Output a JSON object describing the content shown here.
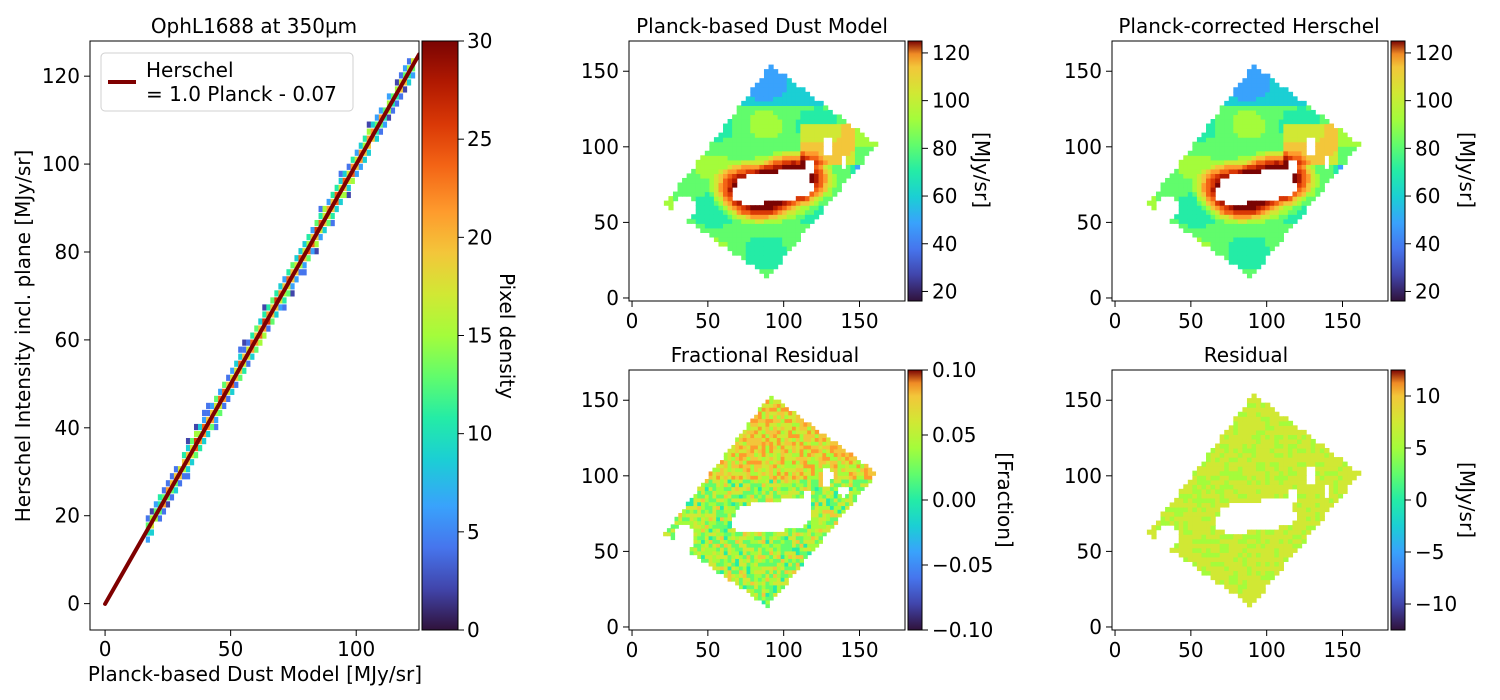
{
  "chart_data": [
    {
      "id": "scatter",
      "type": "heatmap",
      "title": "OphL1688 at 350μm",
      "xlabel": "Planck-based Dust Model [MJy/sr]",
      "ylabel": "Herschel Intensity incl. plane [MJy/sr]",
      "xlim": [
        -6,
        125
      ],
      "ylim": [
        -6,
        128
      ],
      "xticks": [
        0,
        50,
        100
      ],
      "yticks": [
        0,
        20,
        40,
        60,
        80,
        100,
        120
      ],
      "legend": {
        "location": "top-left",
        "line1": "Herschel",
        "line2": "= 1.0 Planck - 0.07"
      },
      "fit": {
        "slope": 1.0,
        "intercept": -0.07,
        "x_range": [
          0,
          125
        ],
        "color": "#7f0000"
      },
      "density_band": {
        "x_range": [
          17,
          124
        ],
        "description": "2D histogram of pixels along the fit line"
      },
      "colorbar": {
        "label": "Pixel density",
        "range": [
          0,
          30
        ],
        "ticks": [
          0,
          5,
          10,
          15,
          20,
          25,
          30
        ],
        "cmap": "turbo"
      }
    },
    {
      "id": "dust_model",
      "type": "heatmap",
      "title": "Planck-based Dust Model",
      "xlim": [
        -2,
        180
      ],
      "ylim": [
        -2,
        170
      ],
      "xticks": [
        0,
        50,
        100,
        150
      ],
      "yticks": [
        0,
        50,
        100,
        150
      ],
      "colorbar": {
        "label": "[MJy/sr]",
        "range": [
          16,
          125
        ],
        "ticks": [
          20,
          40,
          60,
          80,
          100,
          120
        ],
        "cmap": "turbo"
      }
    },
    {
      "id": "corrected",
      "type": "heatmap",
      "title": "Planck-corrected Herschel",
      "xlim": [
        -2,
        180
      ],
      "ylim": [
        -2,
        170
      ],
      "xticks": [
        0,
        50,
        100,
        150
      ],
      "yticks": [
        0,
        50,
        100,
        150
      ],
      "colorbar": {
        "label": "[MJy/sr]",
        "range": [
          16,
          125
        ],
        "ticks": [
          20,
          40,
          60,
          80,
          100,
          120
        ],
        "cmap": "turbo"
      }
    },
    {
      "id": "frac_residual",
      "type": "heatmap",
      "title": "Fractional Residual",
      "xlim": [
        -2,
        180
      ],
      "ylim": [
        -2,
        170
      ],
      "xticks": [
        0,
        50,
        100,
        150
      ],
      "yticks": [
        0,
        50,
        100,
        150
      ],
      "colorbar": {
        "label": "[Fraction]",
        "range": [
          -0.1,
          0.1
        ],
        "ticks": [
          -0.1,
          -0.05,
          0.0,
          0.05,
          0.1
        ],
        "tick_labels": [
          "−0.10",
          "−0.05",
          "0.00",
          "0.05",
          "0.10"
        ],
        "cmap": "turbo"
      }
    },
    {
      "id": "residual",
      "type": "heatmap",
      "title": "Residual",
      "xlim": [
        -2,
        180
      ],
      "ylim": [
        -2,
        170
      ],
      "xticks": [
        0,
        50,
        100,
        150
      ],
      "yticks": [
        0,
        50,
        100,
        150
      ],
      "colorbar": {
        "label": "[MJy/sr]",
        "range": [
          -12.5,
          12.5
        ],
        "ticks": [
          -10,
          -5,
          0,
          5,
          10
        ],
        "tick_labels": [
          "−10",
          "−5",
          "0",
          "5",
          "10"
        ],
        "cmap": "turbo"
      }
    }
  ]
}
